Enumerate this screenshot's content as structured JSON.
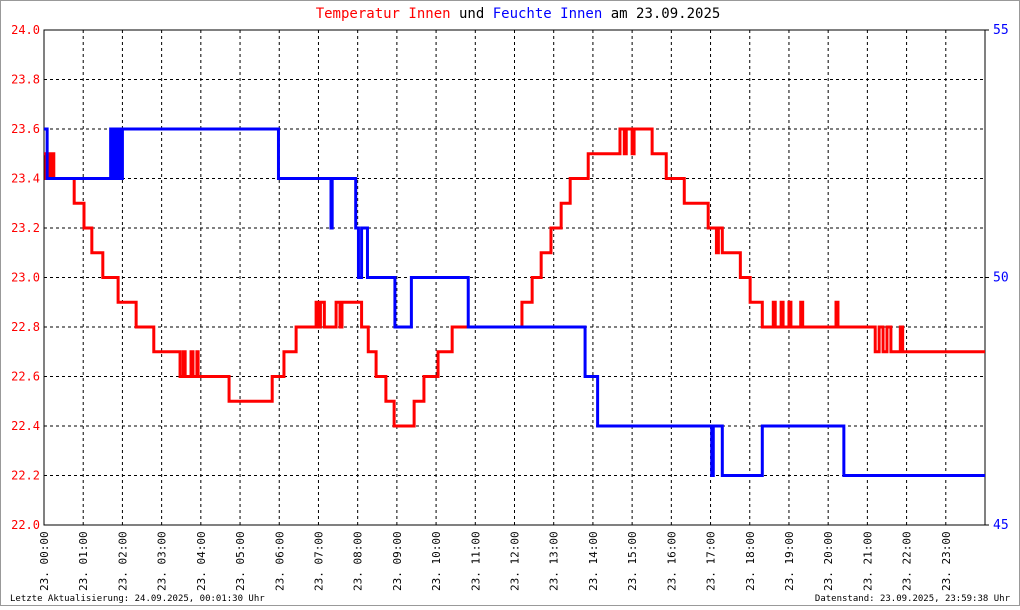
{
  "chart_data": {
    "type": "line",
    "step": true,
    "title_parts": [
      {
        "text": "Temperatur Innen",
        "color": "#ff0000"
      },
      {
        "text": "und",
        "color": "#000000"
      },
      {
        "text": "Feuchte Innen",
        "color": "#0000ff"
      },
      {
        "text": "am 23.09.2025",
        "color": "#000000"
      }
    ],
    "footer_left": "Letzte Aktualisierung: 24.09.2025, 00:01:30 Uhr",
    "footer_right": "Datenstand: 23.09.2025, 23:59:38 Uhr",
    "xlim": [
      0,
      24
    ],
    "xticks": [
      {
        "value": 0,
        "label": "23. 00:00"
      },
      {
        "value": 1,
        "label": "23. 01:00"
      },
      {
        "value": 2,
        "label": "23. 02:00"
      },
      {
        "value": 3,
        "label": "23. 03:00"
      },
      {
        "value": 4,
        "label": "23. 04:00"
      },
      {
        "value": 5,
        "label": "23. 05:00"
      },
      {
        "value": 6,
        "label": "23. 06:00"
      },
      {
        "value": 7,
        "label": "23. 07:00"
      },
      {
        "value": 8,
        "label": "23. 08:00"
      },
      {
        "value": 9,
        "label": "23. 09:00"
      },
      {
        "value": 10,
        "label": "23. 10:00"
      },
      {
        "value": 11,
        "label": "23. 11:00"
      },
      {
        "value": 12,
        "label": "23. 12:00"
      },
      {
        "value": 13,
        "label": "23. 13:00"
      },
      {
        "value": 14,
        "label": "23. 14:00"
      },
      {
        "value": 15,
        "label": "23. 15:00"
      },
      {
        "value": 16,
        "label": "23. 16:00"
      },
      {
        "value": 17,
        "label": "23. 17:00"
      },
      {
        "value": 18,
        "label": "23. 18:00"
      },
      {
        "value": 19,
        "label": "23. 19:00"
      },
      {
        "value": 20,
        "label": "23. 20:00"
      },
      {
        "value": 21,
        "label": "23. 21:00"
      },
      {
        "value": 22,
        "label": "23. 22:00"
      },
      {
        "value": 23,
        "label": "23. 23:00"
      }
    ],
    "ylim": [
      22,
      24
    ],
    "yticks": [
      {
        "value": 22,
        "label": "22.0"
      },
      22.2,
      22.4,
      22.6,
      22.8,
      {
        "value": 23,
        "label": "23.0"
      },
      23.2,
      23.4,
      23.6,
      23.8,
      {
        "value": 24,
        "label": "24.0"
      }
    ],
    "ytick_color": "#ff0000",
    "y2lim": [
      45,
      55
    ],
    "y2ticks": [
      45,
      50,
      55
    ],
    "y2tick_color": "#0000ff",
    "grid": true,
    "series": [
      {
        "color": "#ff0000",
        "x": [
          0,
          0.05,
          0.1,
          0.15,
          0.2,
          0.25,
          0.77,
          1.02,
          1.22,
          1.5,
          1.89,
          2.35,
          2.8,
          3.47,
          3.55,
          3.6,
          3.75,
          3.8,
          3.9,
          3.93,
          4.72,
          5.82,
          6.12,
          6.43,
          6.94,
          7.0,
          7.05,
          7.15,
          7.45,
          7.55,
          7.6,
          8.1,
          8.27,
          8.47,
          8.72,
          8.93,
          9.44,
          9.69,
          10.05,
          10.41,
          12.19,
          12.45,
          12.68,
          12.93,
          13.19,
          13.42,
          13.88,
          14.69,
          14.8,
          14.85,
          15.0,
          15.05,
          15.51,
          15.87,
          16.33,
          16.94,
          17.15,
          17.2,
          17.3,
          17.76,
          18.01,
          18.32,
          18.6,
          18.65,
          18.8,
          18.85,
          19.0,
          19.05,
          19.3,
          19.35,
          20.2,
          20.25,
          21.2,
          21.3,
          21.4,
          21.5,
          21.6,
          21.84,
          21.9,
          24
        ],
        "values": [
          23.5,
          23.4,
          23.5,
          23.4,
          23.5,
          23.4,
          23.3,
          23.2,
          23.1,
          23.0,
          22.9,
          22.8,
          22.7,
          22.6,
          22.7,
          22.6,
          22.7,
          22.6,
          22.7,
          22.6,
          22.5,
          22.6,
          22.7,
          22.8,
          22.9,
          22.8,
          22.9,
          22.8,
          22.9,
          22.8,
          22.9,
          22.8,
          22.7,
          22.6,
          22.5,
          22.4,
          22.5,
          22.6,
          22.7,
          22.8,
          22.9,
          23.0,
          23.1,
          23.2,
          23.3,
          23.4,
          23.5,
          23.6,
          23.5,
          23.6,
          23.5,
          23.6,
          23.5,
          23.4,
          23.3,
          23.2,
          23.1,
          23.2,
          23.1,
          23.0,
          22.9,
          22.8,
          22.9,
          22.8,
          22.9,
          22.8,
          22.9,
          22.8,
          22.9,
          22.8,
          22.9,
          22.8,
          22.7,
          22.8,
          22.7,
          22.8,
          22.7,
          22.8,
          22.7,
          22.7
        ]
      },
      {
        "color": "#0000ff",
        "axis": "y2",
        "x": [
          0,
          0.08,
          1.7,
          1.75,
          1.8,
          1.85,
          1.9,
          1.95,
          2.0,
          5.98,
          7.32,
          7.35,
          7.95,
          8.02,
          8.1,
          8.25,
          8.95,
          9.37,
          10.82,
          13.8,
          14.12,
          17.03,
          17.07,
          17.3,
          18.32,
          20.4,
          24
        ],
        "values": [
          53,
          52,
          53,
          52,
          53,
          52,
          53,
          52,
          53,
          52,
          51,
          52,
          51,
          50,
          51,
          50,
          49,
          50,
          49,
          48,
          47,
          46,
          47,
          46,
          47,
          46,
          46
        ]
      }
    ]
  }
}
